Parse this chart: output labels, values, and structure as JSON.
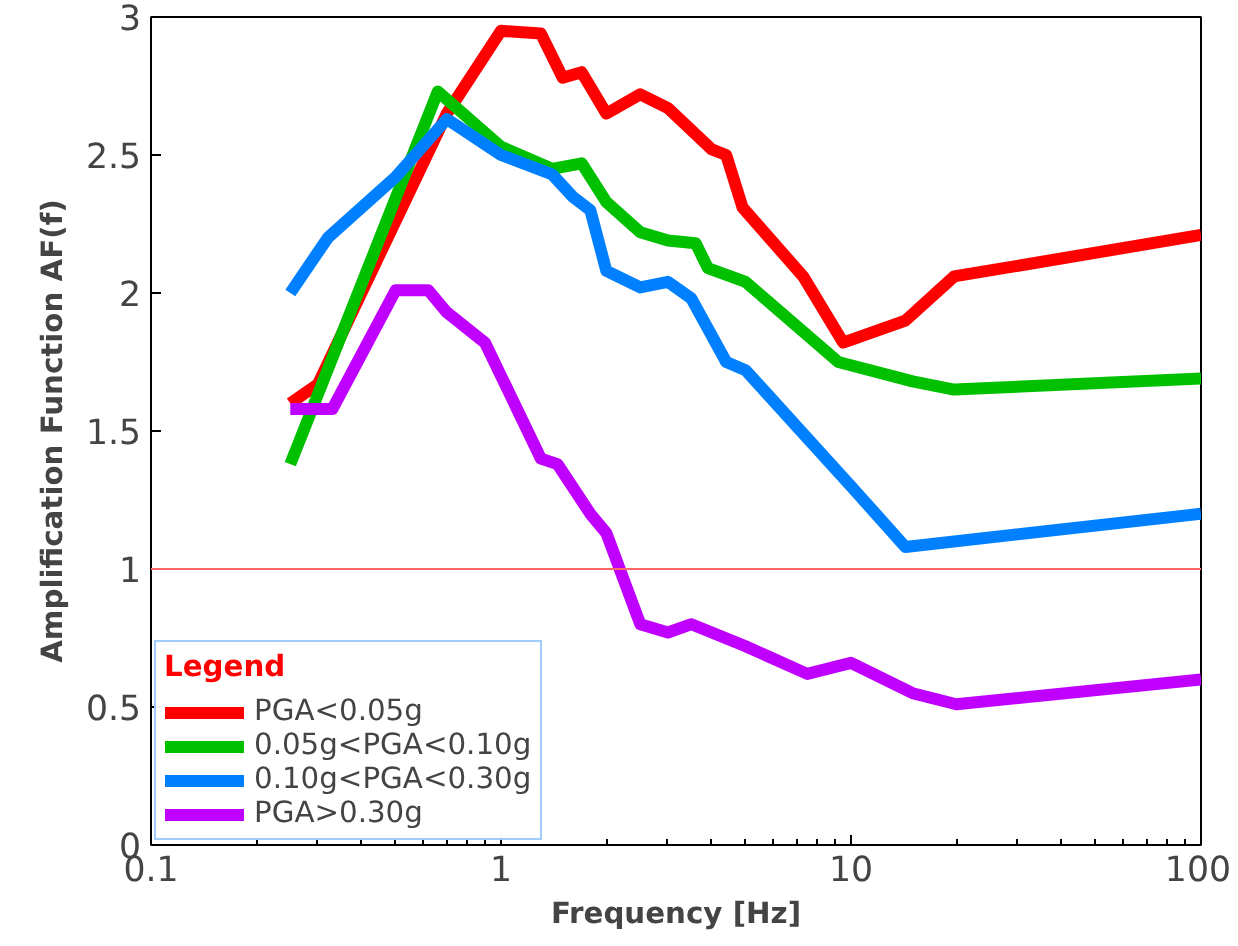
{
  "chart_data": {
    "type": "line",
    "xlabel": "Frequency [Hz]",
    "ylabel": "Amplification Function AF(f)",
    "legend_title": "Legend",
    "log": "x",
    "xlim": [
      0.1,
      100
    ],
    "xticks": [
      0.1,
      1,
      10,
      100
    ],
    "ylim": [
      0,
      3
    ],
    "yticks": [
      0,
      0.5,
      1,
      1.5,
      2,
      2.5,
      3
    ],
    "grid": false,
    "legend": "bottom left",
    "line_style": "solid",
    "marker": "none",
    "ref_lines": [
      {
        "axis": "y",
        "value": 1,
        "color": "#ff6666"
      }
    ],
    "series": [
      {
        "name": "PGA<0.05g",
        "color": "#ff0000",
        "x": [
          0.25,
          0.3,
          0.7,
          1.0,
          1.3,
          1.5,
          1.7,
          2.0,
          2.5,
          3.0,
          4.0,
          4.4,
          4.9,
          7.3,
          9.5,
          14.3,
          19.7,
          100
        ],
        "values": [
          1.6,
          1.67,
          2.65,
          2.95,
          2.94,
          2.78,
          2.8,
          2.65,
          2.72,
          2.67,
          2.52,
          2.5,
          2.31,
          2.06,
          1.82,
          1.9,
          2.06,
          2.21
        ]
      },
      {
        "name": "0.05g<PGA<0.10g",
        "color": "#00c000",
        "x": [
          0.25,
          0.66,
          1.0,
          1.4,
          1.7,
          2.0,
          2.5,
          3.0,
          3.6,
          3.9,
          5.0,
          9.2,
          15,
          19.7,
          100
        ],
        "values": [
          1.38,
          2.73,
          2.53,
          2.45,
          2.47,
          2.33,
          2.22,
          2.19,
          2.18,
          2.09,
          2.04,
          1.75,
          1.68,
          1.65,
          1.69
        ]
      },
      {
        "name": "0.10g<PGA<0.30g",
        "color": "#0080ff",
        "x": [
          0.25,
          0.32,
          0.5,
          0.7,
          1.0,
          1.4,
          1.6,
          1.8,
          2.0,
          2.5,
          3.0,
          3.5,
          4.4,
          5.0,
          10,
          14.3,
          100
        ],
        "values": [
          2.0,
          2.2,
          2.42,
          2.63,
          2.5,
          2.43,
          2.35,
          2.3,
          2.08,
          2.02,
          2.04,
          1.98,
          1.75,
          1.72,
          1.3,
          1.08,
          1.2
        ]
      },
      {
        "name": "PGA>0.30g",
        "color": "#c000ff",
        "x": [
          0.25,
          0.33,
          0.5,
          0.62,
          0.7,
          0.9,
          1.3,
          1.45,
          1.8,
          2.0,
          2.5,
          3.0,
          3.5,
          5.0,
          7.5,
          10,
          15,
          20,
          100
        ],
        "values": [
          1.58,
          1.58,
          2.01,
          2.01,
          1.93,
          1.82,
          1.4,
          1.38,
          1.2,
          1.13,
          0.8,
          0.77,
          0.8,
          0.72,
          0.62,
          0.66,
          0.55,
          0.51,
          0.6
        ]
      }
    ]
  }
}
